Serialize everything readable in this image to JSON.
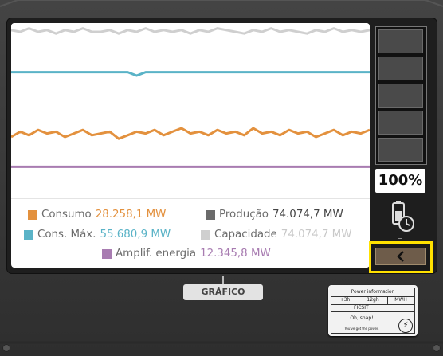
{
  "window": {
    "tab_label": "GRÁFICO",
    "battery_percent_label": "100%",
    "battery_level": 1.0,
    "collapse_icon": "chevron-left-icon"
  },
  "legend": {
    "consumption": {
      "label": "Consumo",
      "value": "28.258,1 MW",
      "color": "#e3913e"
    },
    "production": {
      "label": "Produção",
      "value": "74.074,7 MW",
      "color": "#6b6b6b"
    },
    "max_consumption": {
      "label": "Cons. Máx.",
      "value": "55.680,9 MW",
      "color": "#5ab3c7"
    },
    "capacity": {
      "label": "Capacidade",
      "value": "74.074,7 MW",
      "color": "#cfcfcf"
    },
    "power_shard": {
      "label": "Amplif. energia",
      "value": "12.345,8 MW",
      "color": "#a87cb1"
    }
  },
  "chart_data": {
    "type": "line",
    "ylim": [
      0,
      100
    ],
    "x": [
      0,
      1,
      2,
      3,
      4,
      5,
      6,
      7,
      8,
      9,
      10,
      11,
      12,
      13,
      14,
      15,
      16,
      17,
      18,
      19,
      20,
      21,
      22,
      23,
      24,
      25,
      26,
      27,
      28,
      29,
      30,
      31,
      32,
      33,
      34,
      35,
      36,
      37,
      38,
      39,
      40
    ],
    "series": [
      {
        "name": "Capacidade",
        "color": "#cfcfcf",
        "values": [
          96,
          95,
          97,
          95,
          96,
          94,
          96,
          95,
          97,
          95,
          95,
          96,
          94,
          96,
          95,
          97,
          95,
          96,
          95,
          96,
          94,
          96,
          95,
          97,
          96,
          95,
          94,
          96,
          95,
          97,
          95,
          96,
          95,
          94,
          96,
          95,
          97,
          95,
          96,
          95,
          96
        ]
      },
      {
        "name": "Cons. Máx.",
        "color": "#5ab3c7",
        "values": [
          72,
          72,
          72,
          72,
          72,
          72,
          72,
          72,
          72,
          72,
          72,
          72,
          72,
          72,
          70,
          72,
          72,
          72,
          72,
          72,
          72,
          72,
          72,
          72,
          72,
          72,
          72,
          72,
          72,
          72,
          72,
          72,
          72,
          72,
          72,
          72,
          72,
          72,
          72,
          72,
          72
        ]
      },
      {
        "name": "Consumo",
        "color": "#e3913e",
        "values": [
          35,
          38,
          36,
          39,
          37,
          38,
          35,
          37,
          39,
          36,
          37,
          38,
          34,
          36,
          38,
          37,
          39,
          36,
          38,
          40,
          37,
          38,
          36,
          39,
          37,
          38,
          36,
          40,
          37,
          38,
          36,
          39,
          37,
          38,
          35,
          37,
          39,
          36,
          38,
          37,
          39
        ]
      },
      {
        "name": "Amplif. energia",
        "color": "#a87cb1",
        "values": [
          18,
          18,
          18,
          18,
          18,
          18,
          18,
          18,
          18,
          18,
          18,
          18,
          18,
          18,
          18,
          18,
          18,
          18,
          18,
          18,
          18,
          18,
          18,
          18,
          18,
          18,
          18,
          18,
          18,
          18,
          18,
          18,
          18,
          18,
          18,
          18,
          18,
          18,
          18,
          18,
          18
        ]
      }
    ]
  },
  "sticker": {
    "title": "Power information",
    "col1": "+3h",
    "col2": "12gh",
    "col3": "MWH",
    "brand": "FICSIT",
    "message": "Oh, snap!",
    "footer": "You've got the power."
  }
}
